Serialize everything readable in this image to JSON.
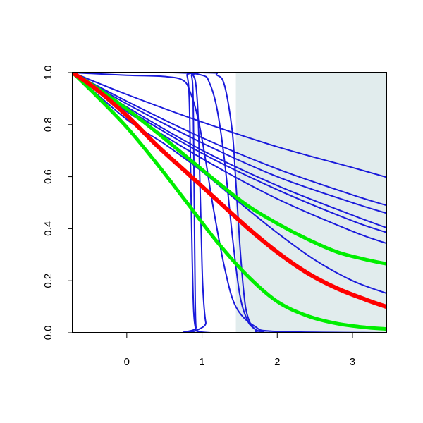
{
  "chart_data": {
    "type": "line",
    "title": "",
    "xlabel": "",
    "ylabel": "",
    "xlim": [
      -0.72,
      3.45
    ],
    "ylim": [
      0.0,
      1.0
    ],
    "x_ticks": [
      0,
      1,
      2,
      3
    ],
    "y_ticks": [
      0.0,
      0.2,
      0.4,
      0.6,
      0.8,
      1.0
    ],
    "x_tick_labels": [
      "0",
      "1",
      "2",
      "3"
    ],
    "y_tick_labels": [
      "0.0",
      "0.2",
      "0.4",
      "0.6",
      "0.8",
      "1.0"
    ],
    "grid": false,
    "legend": "none",
    "shaded_region": {
      "x_from": 1.45,
      "x_to": 3.45,
      "color": "#e1eced"
    },
    "colors": {
      "thin_curves": "#1a1adb",
      "central_curve": "#ff0000",
      "band_curves": "#00ee00",
      "axes": "#000000"
    },
    "series": [
      {
        "group": "thin",
        "color": "#1a1adb",
        "x": [
          -0.72,
          0.0,
          1.0,
          2.0,
          3.0,
          3.45
        ],
        "y": [
          1.0,
          0.868,
          0.702,
          0.566,
          0.452,
          0.404
        ]
      },
      {
        "group": "thin",
        "color": "#1a1adb",
        "x": [
          -0.72,
          0.0,
          1.0,
          2.0,
          3.0,
          3.45
        ],
        "y": [
          1.0,
          0.86,
          0.69,
          0.55,
          0.43,
          0.386
        ]
      },
      {
        "group": "thin",
        "color": "#1a1adb",
        "x": [
          -0.72,
          0.0,
          1.0,
          2.0,
          3.0,
          3.45
        ],
        "y": [
          1.0,
          0.88,
          0.73,
          0.6,
          0.5,
          0.46
        ]
      },
      {
        "group": "thin",
        "color": "#1a1adb",
        "x": [
          -0.72,
          0.0,
          1.0,
          2.0,
          3.0,
          3.45
        ],
        "y": [
          1.0,
          0.89,
          0.75,
          0.63,
          0.53,
          0.49
        ]
      },
      {
        "group": "thin",
        "color": "#1a1adb",
        "x": [
          -0.72,
          0.0,
          1.0,
          2.0,
          3.0,
          3.45
        ],
        "y": [
          1.0,
          0.916,
          0.81,
          0.715,
          0.635,
          0.598
        ]
      },
      {
        "group": "thin",
        "color": "#1a1adb",
        "x": [
          -0.72,
          0.0,
          1.0,
          2.0,
          3.0,
          3.45
        ],
        "y": [
          1.0,
          0.85,
          0.67,
          0.515,
          0.39,
          0.344
        ]
      },
      {
        "group": "thin",
        "color": "#1a1adb",
        "x": [
          -0.72,
          0.0,
          0.5,
          1.0,
          1.5,
          2.0,
          2.5,
          3.0,
          3.45
        ],
        "y": [
          1.0,
          0.82,
          0.726,
          0.62,
          0.5,
          0.384,
          0.28,
          0.2,
          0.152
        ]
      },
      {
        "group": "thin",
        "color": "#1a1adb",
        "x": [
          -0.72,
          0.0,
          0.5,
          0.75,
          0.85,
          0.95,
          1.05,
          1.15,
          1.3,
          1.45,
          1.7,
          2.0,
          3.45
        ],
        "y": [
          1.0,
          0.99,
          0.985,
          0.97,
          0.92,
          0.82,
          0.66,
          0.48,
          0.25,
          0.1,
          0.025,
          0.005,
          0.0
        ]
      },
      {
        "group": "thin",
        "color": "#1a1adb",
        "x": [
          -0.72,
          0.6,
          1.0,
          1.1,
          1.2,
          1.3,
          1.4,
          1.5,
          1.6,
          1.7,
          1.8,
          2.0,
          3.45
        ],
        "y": [
          1.0,
          1.0,
          0.99,
          0.96,
          0.86,
          0.66,
          0.38,
          0.15,
          0.05,
          0.015,
          0.005,
          0.0,
          0.0
        ]
      },
      {
        "group": "thin",
        "color": "#1a1adb",
        "x": [
          -0.72,
          1.0,
          1.2,
          1.3,
          1.4,
          1.45,
          1.5,
          1.55,
          1.6,
          1.7,
          1.9,
          3.45
        ],
        "y": [
          1.0,
          1.0,
          0.99,
          0.95,
          0.78,
          0.58,
          0.35,
          0.17,
          0.07,
          0.015,
          0.0,
          0.0
        ]
      },
      {
        "group": "thin",
        "color": "#1a1adb",
        "x": [
          -0.72,
          0.75,
          0.8,
          0.83,
          0.85,
          0.87,
          0.89,
          0.92,
          0.96,
          3.45
        ],
        "y": [
          1.0,
          1.0,
          0.99,
          0.9,
          0.6,
          0.28,
          0.08,
          0.01,
          0.0,
          0.0
        ]
      },
      {
        "group": "thin",
        "color": "#1a1adb",
        "x": [
          -0.72,
          0.82,
          0.86,
          0.88,
          0.89,
          0.9,
          0.91,
          0.92,
          0.95,
          3.45
        ],
        "y": [
          1.0,
          1.0,
          0.99,
          0.92,
          0.7,
          0.4,
          0.12,
          0.02,
          0.0,
          0.0
        ]
      },
      {
        "group": "thin",
        "color": "#1a1adb",
        "x": [
          -0.72,
          0.8,
          0.88,
          0.92,
          0.95,
          0.97,
          0.99,
          1.01,
          1.05,
          1.12,
          3.45
        ],
        "y": [
          1.0,
          1.0,
          0.99,
          0.95,
          0.82,
          0.6,
          0.38,
          0.18,
          0.04,
          0.0,
          0.0
        ]
      },
      {
        "group": "band",
        "color": "#00ee00",
        "x": [
          -0.72,
          -0.4,
          0.0,
          0.4,
          0.8,
          1.2,
          1.6,
          2.0,
          2.4,
          2.8,
          3.2,
          3.45
        ],
        "y": [
          1.0,
          0.942,
          0.86,
          0.77,
          0.675,
          0.58,
          0.49,
          0.42,
          0.36,
          0.31,
          0.28,
          0.265
        ]
      },
      {
        "group": "band",
        "color": "#00ee00",
        "x": [
          -0.72,
          -0.4,
          0.0,
          0.4,
          0.8,
          1.2,
          1.6,
          2.0,
          2.4,
          2.8,
          3.2,
          3.45
        ],
        "y": [
          1.0,
          0.91,
          0.79,
          0.65,
          0.5,
          0.35,
          0.22,
          0.12,
          0.065,
          0.035,
          0.02,
          0.015
        ]
      },
      {
        "group": "central",
        "color": "#ff0000",
        "x": [
          -0.72,
          -0.4,
          0.0,
          0.4,
          0.8,
          1.2,
          1.6,
          2.0,
          2.4,
          2.8,
          3.2,
          3.45
        ],
        "y": [
          1.0,
          0.935,
          0.835,
          0.72,
          0.615,
          0.51,
          0.405,
          0.31,
          0.23,
          0.17,
          0.125,
          0.1
        ]
      }
    ]
  }
}
